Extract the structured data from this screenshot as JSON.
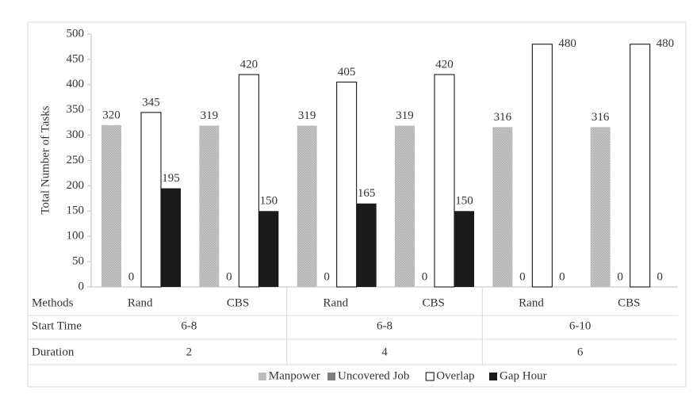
{
  "chart_data": {
    "type": "bar",
    "y_label": "Total Number of Tasks",
    "category_label": "Methods",
    "categories": [
      "Rand",
      "CBS",
      "Rand",
      "CBS",
      "Rand",
      "CBS"
    ],
    "start_time": {
      "label": "Start Time",
      "values": [
        "6-8",
        "6-8",
        "6-10"
      ]
    },
    "duration": {
      "label": "Duration",
      "values": [
        "2",
        "4",
        "6"
      ]
    },
    "series": [
      {
        "name": "Manpower",
        "color": "#bfbfbf",
        "values": [
          320,
          319,
          319,
          319,
          316,
          316
        ]
      },
      {
        "name": "Uncovered Job",
        "color": "#7f7f7f",
        "values": [
          0,
          0,
          0,
          0,
          0,
          0
        ]
      },
      {
        "name": "Overlap",
        "color": "#ffffff",
        "values": [
          345,
          420,
          405,
          420,
          480,
          480
        ]
      },
      {
        "name": "Gap Hour",
        "color": "#1a1a1a",
        "values": [
          195,
          150,
          165,
          150,
          0,
          0
        ]
      }
    ],
    "ylim": [
      0,
      500
    ],
    "yticks": [
      0,
      50,
      100,
      150,
      200,
      250,
      300,
      350,
      400,
      450,
      500
    ],
    "legend": "bottom"
  }
}
